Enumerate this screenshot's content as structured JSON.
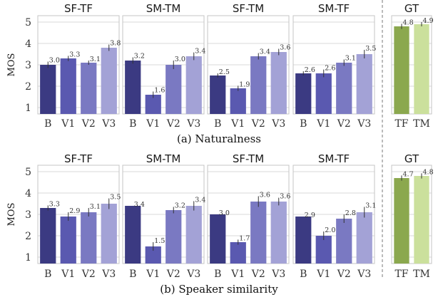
{
  "figure": {
    "captions": [
      "(a) Naturalness",
      "(b) Speaker similarity"
    ]
  },
  "chart_data": [
    {
      "type": "bar",
      "ylabel": "MOS",
      "ylim": [
        0.7,
        5.3
      ],
      "yticks": [
        1,
        2,
        3,
        4,
        5
      ],
      "grid": true,
      "panels": [
        {
          "title": "SF-TF",
          "categories": [
            "B",
            "V1",
            "V2",
            "V3"
          ],
          "values": [
            3.0,
            3.3,
            3.1,
            3.8
          ],
          "labels": [
            "3.0",
            "3.3",
            "3.1",
            "3.8"
          ],
          "err": [
            0.15,
            0.12,
            0.1,
            0.15
          ]
        },
        {
          "title": "SM-TM",
          "categories": [
            "B",
            "V1",
            "V2",
            "V3"
          ],
          "values": [
            3.2,
            1.6,
            3.0,
            3.4
          ],
          "labels": [
            "3.2",
            "1.6",
            "3.0",
            "3.4"
          ],
          "err": [
            0.15,
            0.15,
            0.2,
            0.18
          ]
        },
        {
          "title": "SF-TM",
          "categories": [
            "B",
            "V1",
            "V2",
            "V3"
          ],
          "values": [
            2.5,
            1.9,
            3.4,
            3.6
          ],
          "labels": [
            "2.5",
            "1.9",
            "3.4",
            "3.6"
          ],
          "err": [
            0.1,
            0.12,
            0.15,
            0.15
          ]
        },
        {
          "title": "SM-TF",
          "categories": [
            "B",
            "V1",
            "V2",
            "V3"
          ],
          "values": [
            2.6,
            2.6,
            3.1,
            3.5
          ],
          "labels": [
            "2.6",
            "2.6",
            "3.1",
            "3.5"
          ],
          "err": [
            0.1,
            0.18,
            0.15,
            0.2
          ]
        },
        {
          "title": "GT",
          "categories": [
            "TF",
            "TM"
          ],
          "values": [
            4.8,
            4.9
          ],
          "labels": [
            "4.8",
            "4.9"
          ],
          "err": [
            0.12,
            0.1
          ],
          "gt": true
        }
      ]
    },
    {
      "type": "bar",
      "ylabel": "MOS",
      "ylim": [
        0.7,
        5.3
      ],
      "yticks": [
        1,
        2,
        3,
        4,
        5
      ],
      "grid": true,
      "panels": [
        {
          "title": "SF-TF",
          "categories": [
            "B",
            "V1",
            "V2",
            "V3"
          ],
          "values": [
            3.3,
            2.9,
            3.1,
            3.5
          ],
          "labels": [
            "3.3",
            "2.9",
            "3.1",
            "3.5"
          ],
          "err": [
            0.12,
            0.2,
            0.2,
            0.25
          ]
        },
        {
          "title": "SM-TM",
          "categories": [
            "B",
            "V1",
            "V2",
            "V3"
          ],
          "values": [
            3.4,
            1.5,
            3.2,
            3.4
          ],
          "labels": [
            "3.4",
            "1.5",
            "3.2",
            "3.4"
          ],
          "err": [
            0.0,
            0.2,
            0.15,
            0.22
          ]
        },
        {
          "title": "SF-TM",
          "categories": [
            "B",
            "V1",
            "V2",
            "V3"
          ],
          "values": [
            3.0,
            1.7,
            3.6,
            3.6
          ],
          "labels": [
            "3.0",
            "1.7",
            "3.6",
            "3.6"
          ],
          "err": [
            0.0,
            0.12,
            0.25,
            0.18
          ]
        },
        {
          "title": "SM-TF",
          "categories": [
            "B",
            "V1",
            "V2",
            "V3"
          ],
          "values": [
            2.9,
            2.0,
            2.8,
            3.1
          ],
          "labels": [
            "2.9",
            "2.0",
            "2.8",
            "3.1"
          ],
          "err": [
            0.0,
            0.2,
            0.2,
            0.25
          ]
        },
        {
          "title": "GT",
          "categories": [
            "TF",
            "TM"
          ],
          "values": [
            4.7,
            4.8
          ],
          "labels": [
            "4.7",
            "4.8"
          ],
          "err": [
            0.12,
            0.12
          ],
          "gt": true
        }
      ]
    }
  ],
  "colors": {
    "bars": [
      "#3b3a82",
      "#5a59b0",
      "#7a79c2",
      "#a3a2d6"
    ],
    "gt_bars": [
      "#8ba84e",
      "#cbe09c"
    ],
    "grid": "#d9d9d9",
    "frame": "#c4c4c4",
    "err": "#333333"
  }
}
